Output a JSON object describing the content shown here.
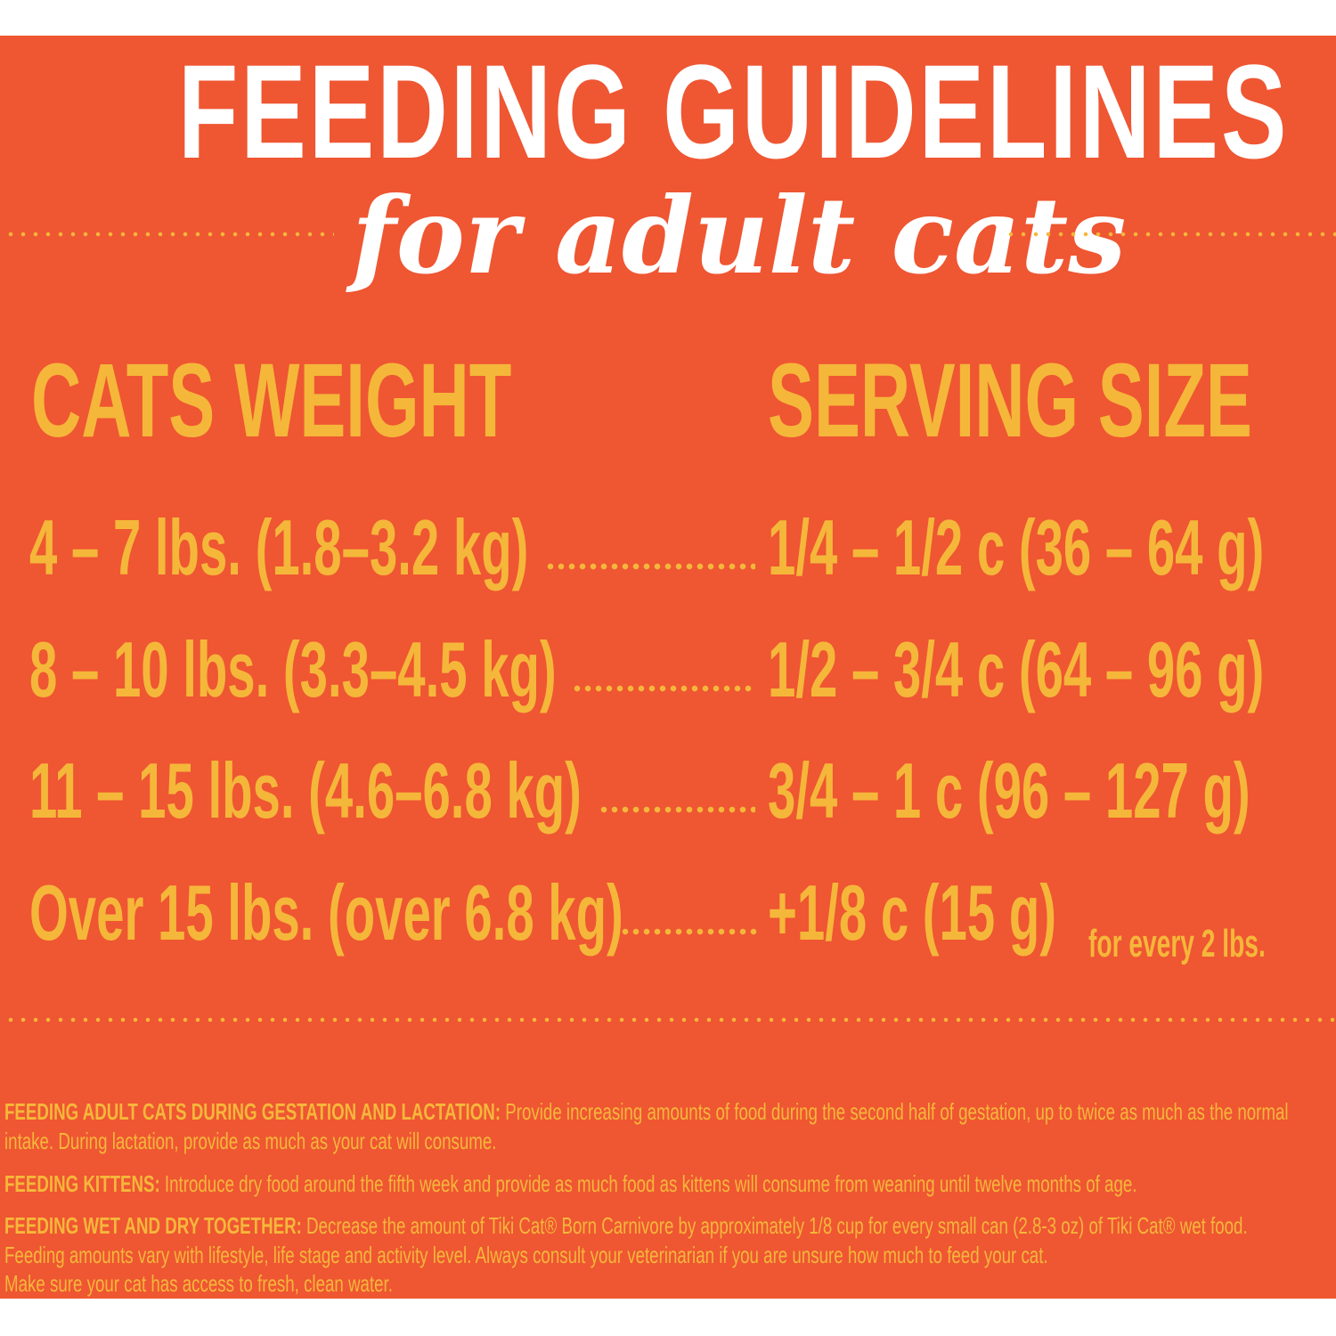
{
  "title": "FEEDING GUIDELINES",
  "subtitle": "for adult cats",
  "colors": {
    "background": "#EF5632",
    "accent": "#F5B73A",
    "title": "#FFFFFF"
  },
  "table": {
    "headers": [
      "CATS WEIGHT",
      "SERVING SIZE"
    ],
    "rows": [
      {
        "weight": "4 – 7 lbs. (1.8–3.2 kg)",
        "serving": "1/4 – 1/2 c (36 – 64 g)",
        "note": ""
      },
      {
        "weight": "8 – 10 lbs. (3.3–4.5 kg)",
        "serving": "1/2 – 3/4 c (64 – 96 g)",
        "note": ""
      },
      {
        "weight": "11 – 15 lbs. (4.6–6.8 kg)",
        "serving": "3/4 – 1 c (96 – 127 g)",
        "note": ""
      },
      {
        "weight": "Over 15 lbs. (over 6.8 kg)",
        "serving": "+1/8 c (15 g)",
        "note": "for every 2 lbs."
      }
    ]
  },
  "notes": {
    "gestation": {
      "label": "FEEDING ADULT CATS DURING GESTATION AND LACTATION:",
      "line1": " Provide increasing amounts of food during the second half of gestation, up to twice as much as the normal",
      "line2": "intake.  During lactation, provide as much as your cat will consume."
    },
    "kittens": {
      "label": "FEEDING KITTENS:",
      "line1": " Introduce dry food around the fifth week and provide as much food as kittens will consume from weaning until twelve months of age."
    },
    "wet_dry": {
      "label": "FEEDING WET AND DRY TOGETHER:",
      "line1": " Decrease the amount of Tiki Cat® Born Carnivore by approximately 1/8 cup for every small can (2.8-3 oz) of Tiki Cat® wet food.",
      "line2": "Feeding amounts vary with lifestyle, life stage and activity level.  Always consult your veterinarian if you are unsure how much to feed your cat.",
      "line3": "Make sure your cat has access to fresh, clean water."
    }
  }
}
